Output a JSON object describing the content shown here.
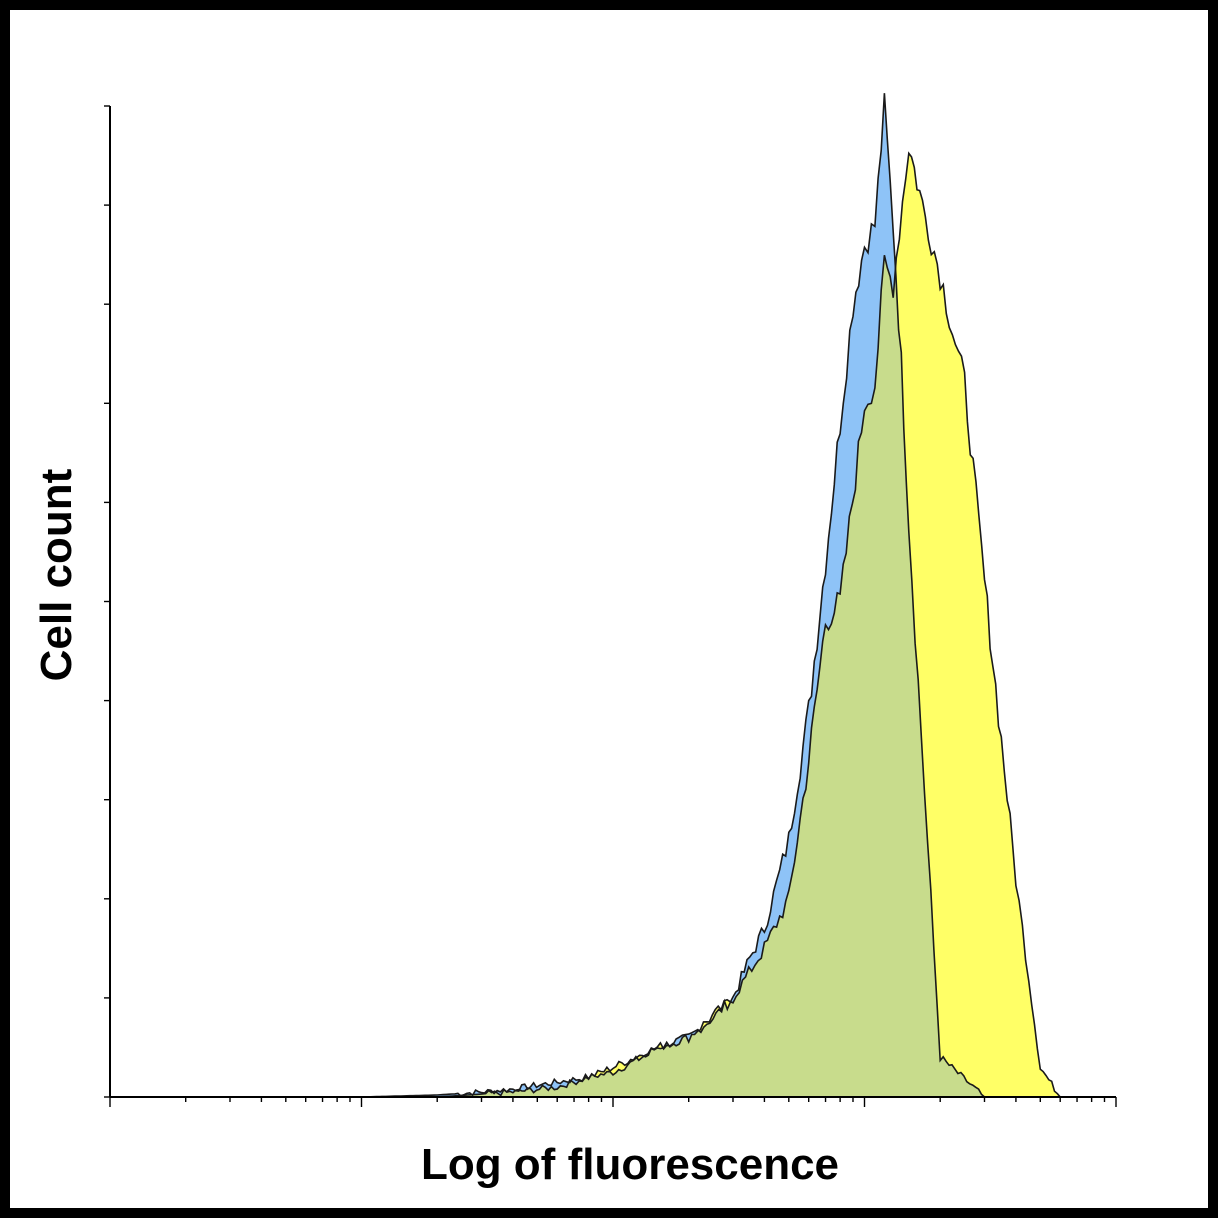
{
  "chart_data": {
    "type": "area",
    "title": "",
    "xlabel": "Log of fluorescence",
    "ylabel": "Cell count",
    "x_scale": "log",
    "xlim": [
      1,
      10000
    ],
    "ylim": [
      0,
      100
    ],
    "legend": "none",
    "grid": false,
    "series": [
      {
        "color": "#8EC3F7",
        "x": [
          10,
          20,
          30,
          40,
          60,
          80,
          100,
          130,
          150,
          200,
          250,
          300,
          350,
          400,
          500,
          600,
          700,
          800,
          900,
          1000,
          1100,
          1200,
          1300,
          1400,
          1500,
          2000,
          3000
        ],
        "y": [
          0,
          0.2,
          0.5,
          0.8,
          1.5,
          2,
          2.5,
          4,
          5,
          6,
          8,
          10,
          14,
          17,
          26,
          39,
          54,
          68,
          80,
          86,
          88,
          100,
          88,
          74,
          58,
          4,
          0
        ]
      },
      {
        "color": "#FFFF66",
        "x": [
          20,
          40,
          60,
          80,
          100,
          150,
          200,
          300,
          400,
          500,
          600,
          700,
          800,
          1000,
          1100,
          1200,
          1300,
          1500,
          1700,
          2000,
          2500,
          3000,
          3500,
          4000,
          4500,
          5000,
          6000
        ],
        "y": [
          0,
          0.5,
          1,
          2,
          3,
          5,
          6,
          10,
          15,
          20,
          34,
          48,
          50,
          70,
          72,
          84,
          82,
          96,
          90,
          83,
          72,
          52,
          36,
          22,
          12,
          3,
          0
        ]
      }
    ]
  }
}
